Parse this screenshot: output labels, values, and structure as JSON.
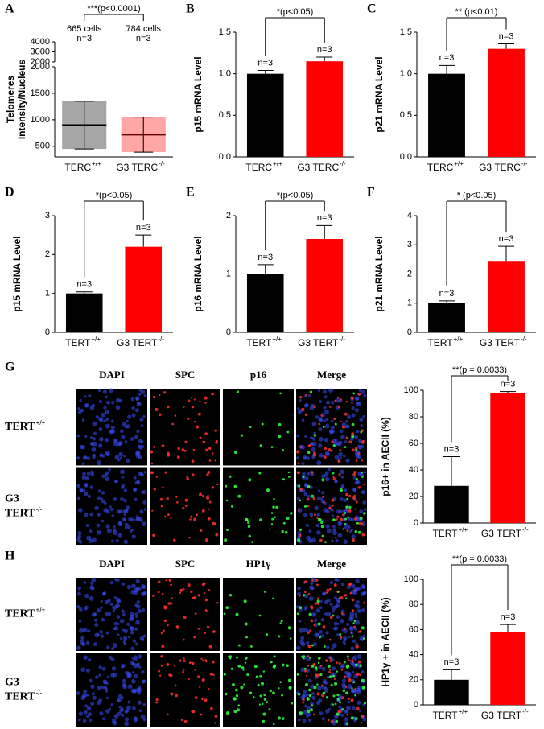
{
  "chart_data": [
    {
      "type": "dot_plot",
      "letter": "A",
      "ylabel": [
        "Telomeres",
        "Intensity/Nucleus"
      ],
      "categories": [
        "TERC",
        "G3 TERC"
      ],
      "category_superscripts": [
        "+/+",
        "-/-"
      ],
      "colors": [
        "#000000",
        "#ff0000"
      ],
      "values": [
        900,
        720
      ],
      "errors": [
        450,
        330
      ],
      "n_labels": [
        "n=3",
        "n=3"
      ],
      "cell_counts": [
        "665 cells",
        "784 cells"
      ],
      "significance": "***(p<0.0001)",
      "ylim": [
        300,
        2000
      ],
      "yticks": [
        500,
        1000,
        1500,
        2000
      ],
      "y_upper_lim": [
        2000,
        4000
      ],
      "y_upper_ticks": [
        2000,
        3000,
        4000
      ]
    },
    {
      "type": "bar",
      "letter": "B",
      "ylabel": "p15 mRNA Level",
      "categories": [
        "TERC",
        "G3 TERC"
      ],
      "category_superscripts": [
        "+/+",
        "-/-"
      ],
      "colors": [
        "#000000",
        "#ff0000"
      ],
      "values": [
        1.0,
        1.15
      ],
      "errors": [
        0.04,
        0.05
      ],
      "n_labels": [
        "n=3",
        "n=3"
      ],
      "significance": "*(p<0.05)",
      "ylim": [
        0,
        1.5
      ],
      "yticks": [
        {
          "value": 0,
          "label": "0.0"
        },
        0.5,
        {
          "value": 1,
          "label": "1.0"
        },
        1.5
      ]
    },
    {
      "type": "bar",
      "letter": "C",
      "ylabel": "p21 mRNA Level",
      "categories": [
        "TERC",
        "G3 TERC"
      ],
      "category_superscripts": [
        "+/+",
        "-/-"
      ],
      "colors": [
        "#000000",
        "#ff0000"
      ],
      "values": [
        1.0,
        1.3
      ],
      "errors": [
        0.1,
        0.06
      ],
      "n_labels": [
        "n=3",
        "n=3"
      ],
      "significance": "** (p<0.01)",
      "ylim": [
        0,
        1.5
      ],
      "yticks": [
        {
          "value": 0,
          "label": "0.0"
        },
        0.5,
        {
          "value": 1,
          "label": "1.0"
        },
        1.5
      ]
    },
    {
      "type": "bar",
      "letter": "D",
      "ylabel": "p15 mRNA Level",
      "categories": [
        "TERT",
        "G3 TERT"
      ],
      "category_superscripts": [
        "+/+",
        "-/-"
      ],
      "colors": [
        "#000000",
        "#ff0000"
      ],
      "values": [
        1.0,
        2.2
      ],
      "errors": [
        0.04,
        0.3
      ],
      "n_labels": [
        "n=3",
        "n=3"
      ],
      "significance": "*(p<0.05)",
      "ylim": [
        0,
        3
      ],
      "yticks": [
        0,
        1,
        2,
        3
      ]
    },
    {
      "type": "bar",
      "letter": "E",
      "ylabel": "p16 mRNA Level",
      "categories": [
        "TERT",
        "G3 TERT"
      ],
      "category_superscripts": [
        "+/+",
        "-/-"
      ],
      "colors": [
        "#000000",
        "#ff0000"
      ],
      "values": [
        1.0,
        1.6
      ],
      "errors": [
        0.16,
        0.23
      ],
      "n_labels": [
        "n=3",
        "n=3"
      ],
      "significance": "*(p<0.05)",
      "ylim": [
        0,
        2
      ],
      "yticks": [
        0,
        1,
        2
      ]
    },
    {
      "type": "bar",
      "letter": "F",
      "ylabel": "p21 mRNA Level",
      "categories": [
        "TERT",
        "G3 TERT"
      ],
      "category_superscripts": [
        "+/+",
        "-/-"
      ],
      "colors": [
        "#000000",
        "#ff0000"
      ],
      "values": [
        1.0,
        2.45
      ],
      "errors": [
        0.08,
        0.5
      ],
      "n_labels": [
        "n=3",
        "n=3"
      ],
      "significance": "* (p<0.05)",
      "ylim": [
        0,
        4
      ],
      "yticks": [
        0,
        1,
        2,
        3,
        4
      ]
    },
    {
      "type": "bar",
      "ylabel": "p16+ in AECII (%)",
      "categories": [
        "TERT",
        "G3 TERT"
      ],
      "category_superscripts": [
        "+/+",
        "-/-"
      ],
      "colors": [
        "#000000",
        "#ff0000"
      ],
      "values": [
        28,
        98
      ],
      "errors": [
        22,
        1
      ],
      "n_labels": [
        "n=3",
        "n=3"
      ],
      "significance": "**(p = 0.0033)",
      "ylim": [
        0,
        100
      ],
      "yticks": [
        0,
        20,
        40,
        60,
        80,
        100
      ]
    },
    {
      "type": "bar",
      "ylabel": "HP1γ + in AECII (%)",
      "categories": [
        "TERT",
        "G3 TERT"
      ],
      "category_superscripts": [
        "+/+",
        "-/-"
      ],
      "colors": [
        "#000000",
        "#ff0000"
      ],
      "values": [
        20,
        58
      ],
      "errors": [
        8,
        6
      ],
      "n_labels": [
        "n=3",
        "n=3"
      ],
      "significance": "**(p = 0.0033)",
      "ylim": [
        0,
        100
      ],
      "yticks": [
        0,
        20,
        40,
        60,
        80,
        100
      ]
    }
  ],
  "image_panels": [
    {
      "letter": "G",
      "columns": [
        "DAPI",
        "SPC",
        "p16",
        "Merge"
      ],
      "column_colors": [
        "#1f5fbf",
        "#e02020",
        "#20b040",
        "#000000"
      ],
      "row_labels": [
        [
          "TERT"
        ],
        [
          "G3",
          "TERT"
        ]
      ],
      "row_superscripts": [
        "+/+",
        "-/-"
      ]
    },
    {
      "letter": "H",
      "columns": [
        "DAPI",
        "SPC",
        "HP1γ",
        "Merge"
      ],
      "column_colors": [
        "#1f5fbf",
        "#e02020",
        "#20b040",
        "#000000"
      ],
      "row_labels": [
        [
          "TERT"
        ],
        [
          "G3",
          "TERT"
        ]
      ],
      "row_superscripts": [
        "+/+",
        "-/-"
      ]
    }
  ]
}
